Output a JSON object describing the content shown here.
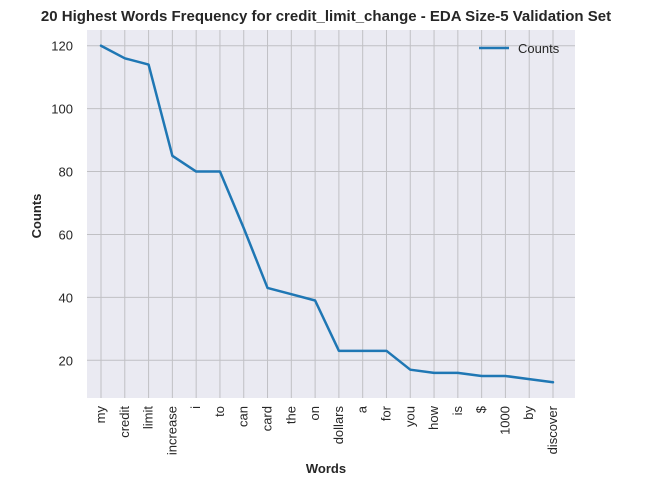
{
  "chart_data": {
    "type": "line",
    "title": "20 Highest Words Frequency for credit_limit_change - EDA Size-5 Validation Set",
    "xlabel": "Words",
    "ylabel": "Counts",
    "categories": [
      "my",
      "credit",
      "limit",
      "increase",
      "i",
      "to",
      "can",
      "card",
      "the",
      "on",
      "dollars",
      "a",
      "for",
      "you",
      "how",
      "is",
      "$",
      "1000",
      "by",
      "discover"
    ],
    "series": [
      {
        "name": "Counts",
        "values": [
          120,
          116,
          114,
          85,
          80,
          80,
          62,
          43,
          41,
          39,
          23,
          23,
          23,
          17,
          16,
          16,
          15,
          15,
          14,
          13
        ]
      }
    ],
    "ylim": [
      8,
      125
    ],
    "yticks": [
      20,
      40,
      60,
      80,
      100,
      120
    ],
    "grid": true,
    "legend_position": "top-right",
    "colors": {
      "line": "#1f77b4",
      "plot_bg": "#eaeaf2",
      "grid": "#c0c0c4"
    }
  }
}
